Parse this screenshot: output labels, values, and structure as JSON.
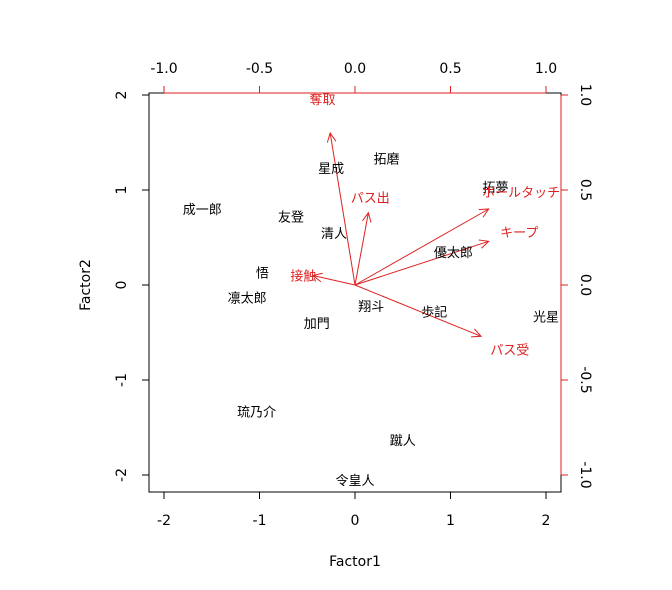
{
  "chart_data": {
    "type": "scatter",
    "subtype": "biplot",
    "title": "",
    "xlabel": "Factor1",
    "ylabel": "Factor2",
    "xlim": [
      -2.2,
      2.2
    ],
    "ylim": [
      -2.2,
      2.2
    ],
    "xticks": [
      -2,
      -1,
      0,
      1,
      2
    ],
    "yticks": [
      -2,
      -1,
      0,
      1,
      2
    ],
    "loading_axis": {
      "color": "#dd2222",
      "ticks": [
        -1.0,
        -0.5,
        0.0,
        0.5,
        1.0
      ],
      "tick_labels": [
        "-1.0",
        "-0.5",
        "0.0",
        "0.5",
        "1.0"
      ],
      "scale": 2
    },
    "grid": false,
    "scores": [
      {
        "name": "成一郎",
        "x": -1.6,
        "y": 0.8
      },
      {
        "name": "友登",
        "x": -0.67,
        "y": 0.72
      },
      {
        "name": "清人",
        "x": -0.22,
        "y": 0.55
      },
      {
        "name": "星成",
        "x": -0.25,
        "y": 1.23
      },
      {
        "name": "拓磨",
        "x": 0.33,
        "y": 1.33
      },
      {
        "name": "拓夢",
        "x": 1.47,
        "y": 1.03
      },
      {
        "name": "優太郎",
        "x": 1.03,
        "y": 0.35
      },
      {
        "name": "悟",
        "x": -0.97,
        "y": 0.13
      },
      {
        "name": "凛太郎",
        "x": -1.13,
        "y": -0.13
      },
      {
        "name": "加門",
        "x": -0.4,
        "y": -0.4
      },
      {
        "name": "翔斗",
        "x": 0.17,
        "y": -0.22
      },
      {
        "name": "歩記",
        "x": 0.83,
        "y": -0.28
      },
      {
        "name": "光星",
        "x": 2.0,
        "y": -0.33
      },
      {
        "name": "琉乃介",
        "x": -1.03,
        "y": -1.33
      },
      {
        "name": "蹴人",
        "x": 0.5,
        "y": -1.63
      },
      {
        "name": "令皇人",
        "x": 0.0,
        "y": -2.05
      }
    ],
    "loadings": [
      {
        "name": "奪取",
        "x": -0.13,
        "y": 0.8,
        "lx": -0.17,
        "ly": 0.98
      },
      {
        "name": "パス出",
        "x": 0.07,
        "y": 0.38,
        "lx": 0.08,
        "ly": 0.46
      },
      {
        "name": "ボールタッチ",
        "x": 0.7,
        "y": 0.4,
        "lx": 0.87,
        "ly": 0.49
      },
      {
        "name": "キープ",
        "x": 0.7,
        "y": 0.23,
        "lx": 0.86,
        "ly": 0.28
      },
      {
        "name": "接触",
        "x": -0.22,
        "y": 0.05,
        "lx": -0.27,
        "ly": 0.05
      },
      {
        "name": "パス受",
        "x": 0.66,
        "y": -0.27,
        "lx": 0.81,
        "ly": -0.34
      }
    ]
  }
}
